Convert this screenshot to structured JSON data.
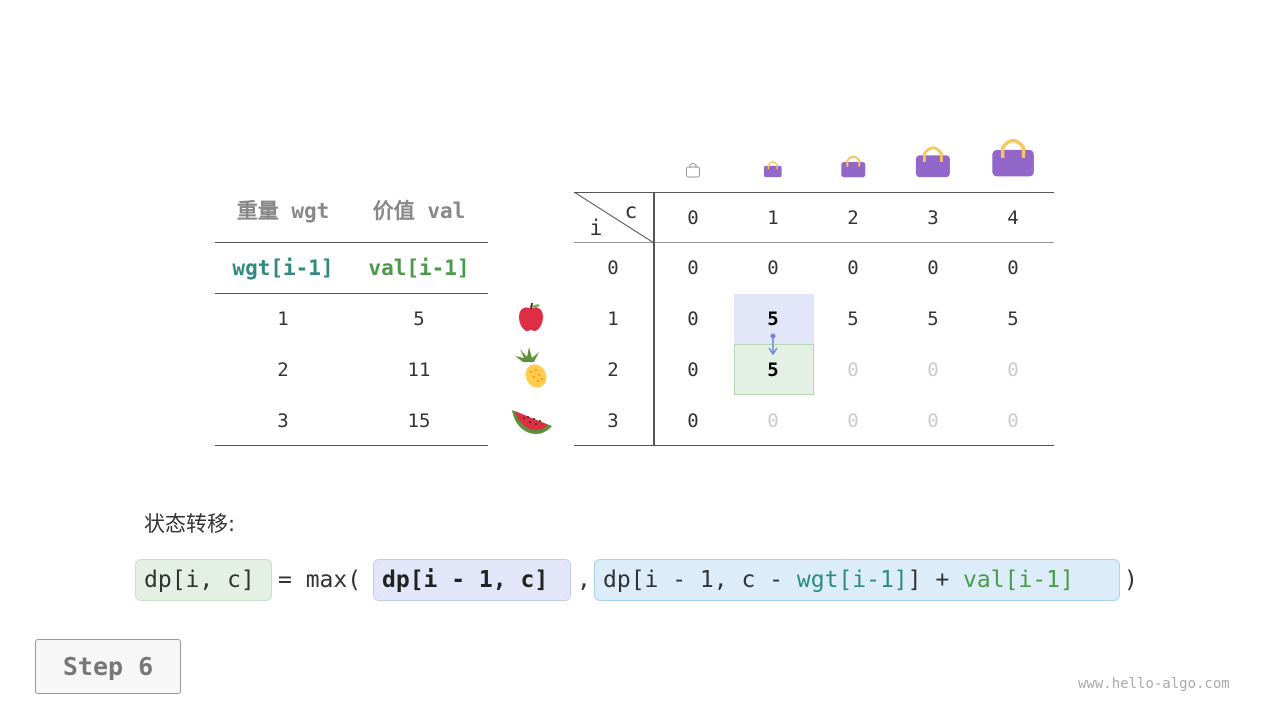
{
  "items_table": {
    "headers": [
      "重量 wgt",
      "价值 val"
    ],
    "subheaders": [
      "wgt[i-1]",
      "val[i-1]"
    ],
    "rows": [
      {
        "wgt": "1",
        "val": "5",
        "icon": "apple-icon"
      },
      {
        "wgt": "2",
        "val": "11",
        "icon": "pineapple-icon"
      },
      {
        "wgt": "3",
        "val": "15",
        "icon": "watermelon-icon"
      }
    ]
  },
  "dp_table": {
    "corner_c": "c",
    "corner_i": "i",
    "col_headers": [
      "0",
      "1",
      "2",
      "3",
      "4"
    ],
    "row_headers": [
      "0",
      "1",
      "2",
      "3"
    ],
    "cells": [
      [
        "0",
        "0",
        "0",
        "0",
        "0"
      ],
      [
        "0",
        "5",
        "5",
        "5",
        "5"
      ],
      [
        "0",
        "5",
        "0",
        "0",
        "0"
      ],
      [
        "0",
        "0",
        "0",
        "0",
        "0"
      ]
    ],
    "faded": [
      [
        false,
        false,
        false,
        false,
        false
      ],
      [
        false,
        false,
        false,
        false,
        false
      ],
      [
        false,
        false,
        true,
        true,
        true
      ],
      [
        false,
        true,
        true,
        true,
        true
      ]
    ],
    "highlight_source": [
      1,
      1
    ],
    "highlight_target": [
      2,
      1
    ],
    "bag_icons": [
      "empty-bag-icon",
      "bag-icon",
      "bag-icon",
      "bag-icon",
      "bag-icon"
    ]
  },
  "formula": {
    "label": "状态转移:",
    "lhs": "dp[i, c]",
    "eq": "= max(",
    "opt1": "dp[i - 1, c]",
    "comma": ",",
    "opt2_a": "dp[i - 1, c - ",
    "opt2_wgt": "wgt[i-1]",
    "opt2_b": "] + ",
    "opt2_val": "val[i-1]",
    "close": ")"
  },
  "step_button": "Step 6",
  "watermark": "www.hello-algo.com",
  "colors": {
    "purple": "#9366c9",
    "handle": "#f7c55a",
    "source_bg": "#e3e6f8",
    "target_bg": "#e3f0e3",
    "arrow": "#6c85d8",
    "teal": "#2e8b7e",
    "green": "#4a9a4a"
  }
}
